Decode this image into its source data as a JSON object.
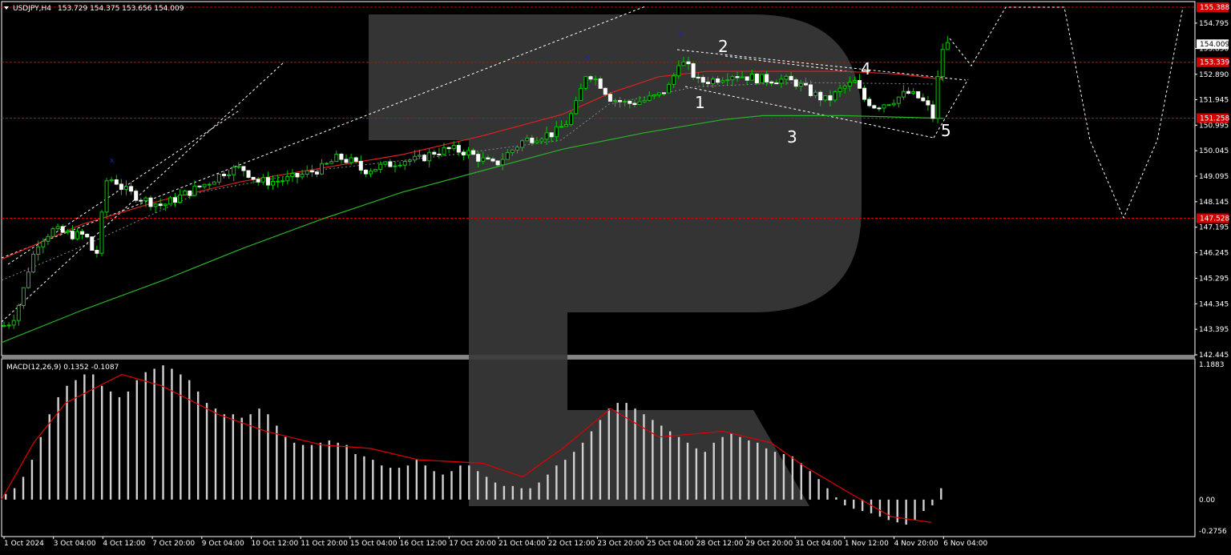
{
  "chart_header": {
    "symbol_text": "USDJPY,H4",
    "ohlc_text": "153.729 154.375 153.656 154.009"
  },
  "macd_header": {
    "text": "MACD(12,26,9) 0.1352 -0.1087"
  },
  "colors": {
    "background": "#000000",
    "border": "#ffffff",
    "bull_candle": "#00c800",
    "candle_wick": "#00c800",
    "level_line": "#d00000",
    "ma_red": "#e02020",
    "ma_green": "#28b428",
    "macd_hist": "#d0d0d0",
    "macd_signal": "#e00000",
    "watermark": "#3a3a3a",
    "arrow_marker": "#2020c0"
  },
  "price_axis": {
    "ticks": [
      "154.795",
      "153.850",
      "152.890",
      "151.945",
      "150.995",
      "150.045",
      "149.095",
      "148.145",
      "147.195",
      "146.245",
      "145.295",
      "144.345",
      "143.395",
      "142.445"
    ],
    "current_price_tag": "154.009",
    "level_tags": [
      "155.388",
      "153.339",
      "151.258",
      "147.528"
    ]
  },
  "macd_axis": {
    "ticks": [
      "1.1883",
      "0.00",
      "-0.2756"
    ]
  },
  "time_axis": {
    "labels": [
      "1 Oct 2024",
      "3 Oct 04:00",
      "4 Oct 12:00",
      "7 Oct 20:00",
      "9 Oct 04:00",
      "10 Oct 12:00",
      "11 Oct 20:00",
      "15 Oct 04:00",
      "16 Oct 12:00",
      "17 Oct 20:00",
      "21 Oct 04:00",
      "22 Oct 12:00",
      "23 Oct 20:00",
      "25 Oct 04:00",
      "28 Oct 12:00",
      "29 Oct 20:00",
      "31 Oct 04:00",
      "1 Nov 12:00",
      "4 Nov 20:00",
      "6 Nov 04:00"
    ]
  },
  "wave_labels": [
    "1",
    "2",
    "3",
    "4",
    "5"
  ],
  "chart_data": {
    "type": "candlestick",
    "symbol": "USDJPY",
    "timeframe": "H4",
    "ylim": [
      142.445,
      155.388
    ],
    "close_path": [
      [
        0,
        143.5
      ],
      [
        8,
        143.6
      ],
      [
        16,
        143.9
      ],
      [
        25,
        144.6
      ],
      [
        35,
        145.8
      ],
      [
        45,
        146.6
      ],
      [
        55,
        146.9
      ],
      [
        65,
        147.1
      ],
      [
        75,
        147.0
      ],
      [
        90,
        146.9
      ],
      [
        105,
        146.9
      ],
      [
        115,
        146.2
      ],
      [
        122,
        146.3
      ],
      [
        128,
        148.9
      ],
      [
        140,
        149.0
      ],
      [
        152,
        148.6
      ],
      [
        165,
        148.4
      ],
      [
        180,
        148.2
      ],
      [
        200,
        148.0
      ],
      [
        220,
        148.3
      ],
      [
        240,
        148.6
      ],
      [
        260,
        148.9
      ],
      [
        280,
        149.3
      ],
      [
        300,
        149.4
      ],
      [
        320,
        148.9
      ],
      [
        340,
        148.9
      ],
      [
        360,
        149.0
      ],
      [
        380,
        149.2
      ],
      [
        400,
        149.4
      ],
      [
        420,
        149.8
      ],
      [
        440,
        149.6
      ],
      [
        450,
        149.3
      ],
      [
        465,
        149.4
      ],
      [
        480,
        149.5
      ],
      [
        500,
        149.7
      ],
      [
        520,
        149.7
      ],
      [
        540,
        150.0
      ],
      [
        560,
        150.1
      ],
      [
        580,
        150.0
      ],
      [
        600,
        149.7
      ],
      [
        615,
        149.5
      ],
      [
        630,
        149.9
      ],
      [
        650,
        150.4
      ],
      [
        670,
        150.6
      ],
      [
        690,
        150.7
      ],
      [
        705,
        151.1
      ],
      [
        715,
        151.6
      ],
      [
        725,
        152.5
      ],
      [
        730,
        153.0
      ],
      [
        745,
        152.6
      ],
      [
        760,
        152.0
      ],
      [
        780,
        151.8
      ],
      [
        800,
        151.9
      ],
      [
        820,
        152.1
      ],
      [
        835,
        152.5
      ],
      [
        845,
        153.4
      ],
      [
        855,
        153.2
      ],
      [
        870,
        152.6
      ],
      [
        890,
        152.7
      ],
      [
        910,
        152.9
      ],
      [
        930,
        152.8
      ],
      [
        950,
        152.7
      ],
      [
        970,
        152.7
      ],
      [
        990,
        152.6
      ],
      [
        1010,
        152.2
      ],
      [
        1030,
        151.9
      ],
      [
        1050,
        152.4
      ],
      [
        1065,
        152.6
      ],
      [
        1075,
        152.0
      ],
      [
        1090,
        151.7
      ],
      [
        1110,
        151.9
      ],
      [
        1130,
        152.2
      ],
      [
        1145,
        152.0
      ],
      [
        1155,
        151.7
      ],
      [
        1162,
        151.3
      ],
      [
        1168,
        152.7
      ],
      [
        1175,
        154.0
      ],
      [
        1182,
        154.0
      ]
    ],
    "levels": [
      155.388,
      153.339,
      151.258,
      147.528
    ],
    "ma_red": [
      [
        0,
        146.0
      ],
      [
        100,
        147.3
      ],
      [
        200,
        148.2
      ],
      [
        300,
        148.9
      ],
      [
        400,
        149.4
      ],
      [
        500,
        149.9
      ],
      [
        600,
        150.6
      ],
      [
        700,
        151.4
      ],
      [
        760,
        152.2
      ],
      [
        820,
        152.8
      ],
      [
        880,
        153.0
      ],
      [
        950,
        153.0
      ],
      [
        1050,
        153.0
      ],
      [
        1120,
        152.9
      ],
      [
        1175,
        152.7
      ]
    ],
    "ma_green": [
      [
        0,
        142.9
      ],
      [
        100,
        144.1
      ],
      [
        200,
        145.2
      ],
      [
        300,
        146.4
      ],
      [
        400,
        147.5
      ],
      [
        500,
        148.5
      ],
      [
        600,
        149.3
      ],
      [
        700,
        150.1
      ],
      [
        800,
        150.7
      ],
      [
        900,
        151.2
      ],
      [
        950,
        151.35
      ],
      [
        1050,
        151.35
      ],
      [
        1175,
        151.25
      ]
    ],
    "macd": {
      "hist": [
        0.05,
        0.1,
        0.2,
        0.35,
        0.55,
        0.75,
        0.9,
        1.0,
        1.05,
        1.1,
        1.1,
        1.0,
        0.95,
        0.9,
        0.95,
        1.05,
        1.12,
        1.15,
        1.18,
        1.15,
        1.1,
        1.05,
        0.95,
        0.85,
        0.8,
        0.75,
        0.75,
        0.72,
        0.75,
        0.8,
        0.75,
        0.65,
        0.55,
        0.5,
        0.48,
        0.48,
        0.5,
        0.52,
        0.5,
        0.48,
        0.4,
        0.38,
        0.35,
        0.3,
        0.28,
        0.28,
        0.3,
        0.35,
        0.3,
        0.25,
        0.22,
        0.25,
        0.3,
        0.3,
        0.25,
        0.2,
        0.15,
        0.12,
        0.12,
        0.1,
        0.1,
        0.15,
        0.22,
        0.3,
        0.35,
        0.42,
        0.5,
        0.6,
        0.7,
        0.8,
        0.85,
        0.85,
        0.8,
        0.75,
        0.7,
        0.65,
        0.6,
        0.55,
        0.5,
        0.45,
        0.42,
        0.5,
        0.55,
        0.58,
        0.55,
        0.52,
        0.5,
        0.45,
        0.42,
        0.4,
        0.38,
        0.32,
        0.25,
        0.18,
        0.1,
        0.02,
        -0.05,
        -0.08,
        -0.1,
        -0.12,
        -0.15,
        -0.18,
        -0.2,
        -0.22,
        -0.18,
        -0.1,
        -0.05,
        0.1
      ],
      "signal": [
        [
          0,
          0
        ],
        [
          40,
          0.5
        ],
        [
          80,
          0.85
        ],
        [
          150,
          1.1
        ],
        [
          200,
          1.0
        ],
        [
          270,
          0.75
        ],
        [
          330,
          0.6
        ],
        [
          400,
          0.48
        ],
        [
          460,
          0.45
        ],
        [
          520,
          0.35
        ],
        [
          600,
          0.32
        ],
        [
          650,
          0.2
        ],
        [
          700,
          0.45
        ],
        [
          760,
          0.8
        ],
        [
          820,
          0.55
        ],
        [
          900,
          0.6
        ],
        [
          960,
          0.5
        ],
        [
          1000,
          0.3
        ],
        [
          1060,
          0.05
        ],
        [
          1110,
          -0.15
        ],
        [
          1160,
          -0.2
        ]
      ]
    }
  }
}
